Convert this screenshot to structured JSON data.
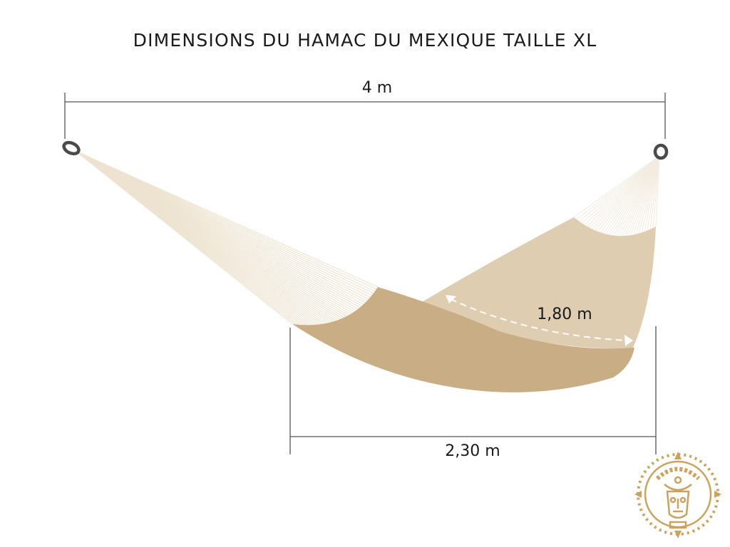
{
  "title": "DIMENSIONS DU HAMAC DU MEXIQUE TAILLE XL",
  "dimensions": {
    "total_length": "4 m",
    "width": "1,80 m",
    "bed_length": "2,30 m"
  },
  "colors": {
    "fabric_front": "#c8ad85",
    "fabric_back": "#dfcdb2",
    "strings": "#ede3d0",
    "rings": "#4a4a4a",
    "dimension_lines": "#555555",
    "logo": "#c9a35f"
  },
  "logo": {
    "icon": "aztec-mask-emblem"
  }
}
